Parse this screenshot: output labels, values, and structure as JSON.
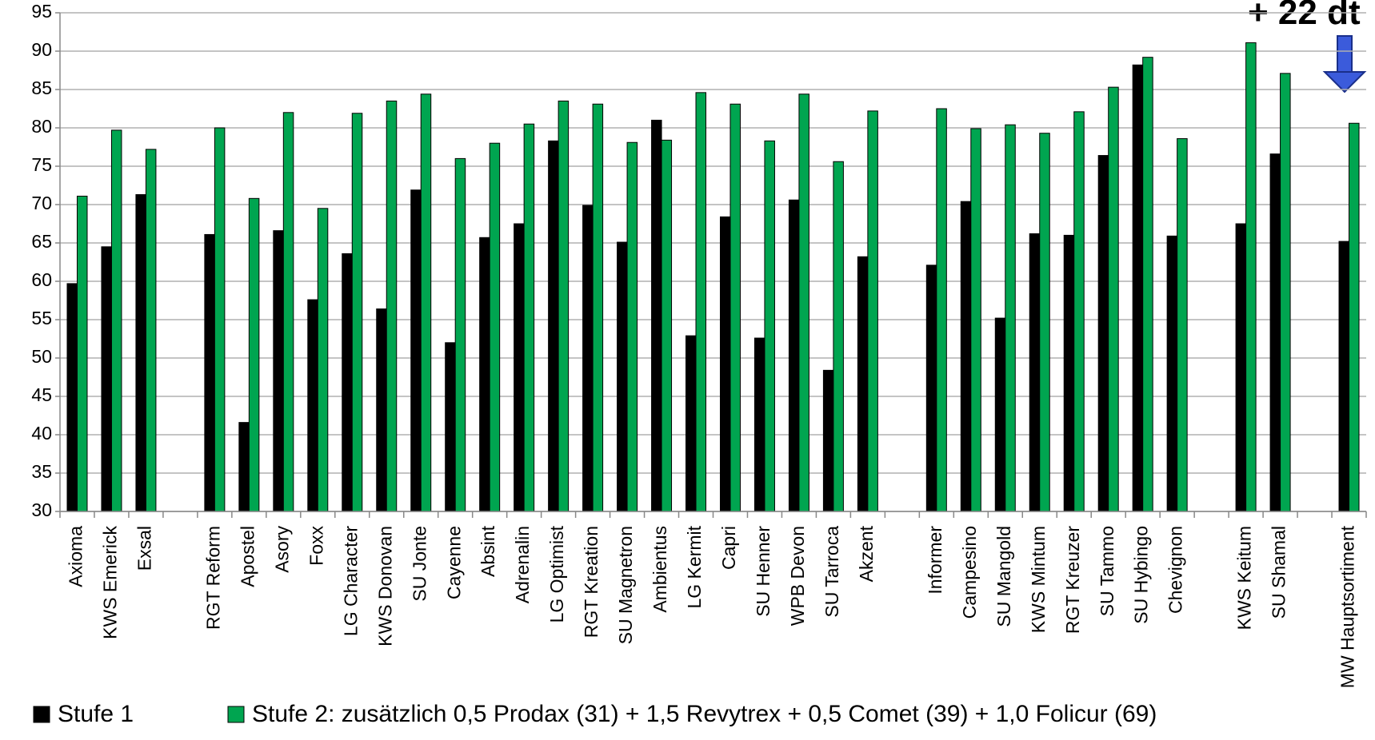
{
  "chart_data": {
    "type": "bar",
    "categories": [
      "Axioma",
      "KWS Emerick",
      "Exsal",
      null,
      "RGT Reform",
      "Apostel",
      "Asory",
      "Foxx",
      "LG Character",
      "KWS Donovan",
      "SU Jonte",
      "Cayenne",
      "Absint",
      "Adrenalin",
      "LG Optimist",
      "RGT Kreation",
      "SU Magnetron",
      "Ambientus",
      "LG Kermit",
      "Capri",
      "SU Henner",
      "WPB Devon",
      "SU Tarroca",
      "Akzent",
      null,
      "Informer",
      "Campesino",
      "SU Mangold",
      "KWS Mintum",
      "RGT Kreuzer",
      "SU Tammo",
      "SU Hybingo",
      "Chevignon",
      null,
      "KWS Keitum",
      "SU Shamal",
      null,
      "MW Hauptsortiment"
    ],
    "series": [
      {
        "name": "Stufe 1",
        "color": "#000000",
        "values": [
          59.7,
          64.5,
          71.3,
          null,
          66.1,
          41.6,
          66.6,
          57.6,
          63.6,
          56.4,
          71.9,
          52.0,
          65.7,
          67.5,
          78.3,
          69.9,
          65.1,
          81.0,
          52.9,
          68.4,
          52.6,
          70.6,
          48.4,
          63.2,
          null,
          62.1,
          70.4,
          55.2,
          66.2,
          66.0,
          76.4,
          88.2,
          65.9,
          null,
          67.5,
          76.6,
          null,
          65.2
        ]
      },
      {
        "name": "Stufe 2: zusätzlich 0,5 Prodax (31) + 1,5 Revytrex + 0,5 Comet (39) + 1,0 Folicur (69)",
        "color": "#00a550",
        "values": [
          71.1,
          79.7,
          77.2,
          null,
          80.0,
          70.8,
          82.0,
          69.5,
          81.9,
          83.5,
          84.4,
          76.0,
          78.0,
          80.5,
          83.5,
          83.1,
          78.1,
          78.4,
          84.6,
          83.1,
          78.3,
          84.4,
          75.6,
          82.2,
          null,
          82.5,
          79.9,
          80.4,
          79.3,
          82.1,
          85.3,
          89.2,
          78.6,
          null,
          91.1,
          87.1,
          null,
          80.6
        ]
      }
    ],
    "annotation": "+ 22 dt",
    "ylim": [
      30,
      95
    ],
    "yticks": [
      30,
      35,
      40,
      45,
      50,
      55,
      60,
      65,
      70,
      75,
      80,
      85,
      90,
      95
    ],
    "grid": true,
    "legend": "bottom"
  }
}
